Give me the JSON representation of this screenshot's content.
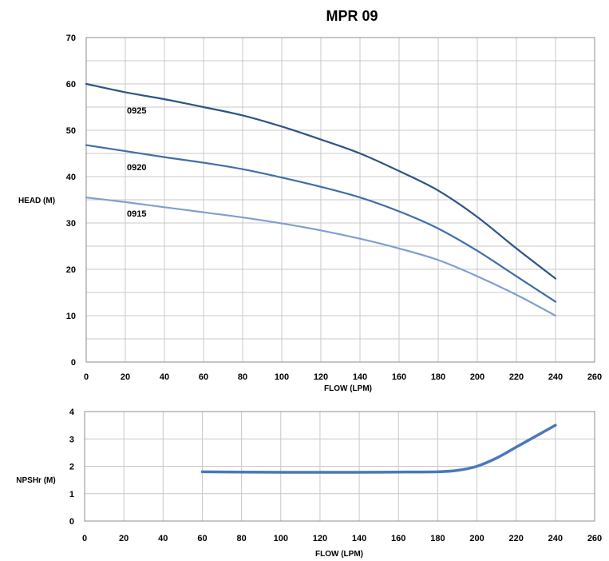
{
  "chart_data": [
    {
      "type": "line",
      "title": "MPR 09",
      "xlabel": "FLOW (LPM)",
      "ylabel": "HEAD (M)",
      "xlim": [
        0,
        260
      ],
      "ylim": [
        0,
        70
      ],
      "x_ticks": [
        "0",
        "20",
        "40",
        "60",
        "80",
        "100",
        "120",
        "140",
        "160",
        "180",
        "200",
        "220",
        "240",
        "260"
      ],
      "y_ticks": [
        "0",
        "10",
        "20",
        "30",
        "40",
        "50",
        "60",
        "70"
      ],
      "grid": true,
      "series": [
        {
          "name": "0925",
          "color": "#2e5383",
          "points": [
            [
              0,
              60
            ],
            [
              20,
              58.2
            ],
            [
              40,
              56.7
            ],
            [
              60,
              55
            ],
            [
              80,
              53.2
            ],
            [
              100,
              50.8
            ],
            [
              120,
              48
            ],
            [
              140,
              45
            ],
            [
              160,
              41.2
            ],
            [
              180,
              37
            ],
            [
              200,
              31.3
            ],
            [
              220,
              24.5
            ],
            [
              240,
              18
            ]
          ]
        },
        {
          "name": "0920",
          "color": "#3f6ea8",
          "points": [
            [
              0,
              46.8
            ],
            [
              20,
              45.5
            ],
            [
              40,
              44.2
            ],
            [
              60,
              43
            ],
            [
              80,
              41.6
            ],
            [
              100,
              39.8
            ],
            [
              120,
              37.8
            ],
            [
              140,
              35.5
            ],
            [
              160,
              32.5
            ],
            [
              180,
              28.8
            ],
            [
              200,
              24
            ],
            [
              220,
              18.5
            ],
            [
              240,
              13
            ]
          ]
        },
        {
          "name": "0915",
          "color": "#7f9fd0",
          "points": [
            [
              0,
              35.5
            ],
            [
              20,
              34.5
            ],
            [
              40,
              33.4
            ],
            [
              60,
              32.3
            ],
            [
              80,
              31.2
            ],
            [
              100,
              29.9
            ],
            [
              120,
              28.4
            ],
            [
              140,
              26.6
            ],
            [
              160,
              24.5
            ],
            [
              180,
              22
            ],
            [
              200,
              18.5
            ],
            [
              220,
              14.5
            ],
            [
              240,
              10
            ]
          ]
        }
      ]
    },
    {
      "type": "line",
      "title": "",
      "xlabel": "FLOW (LPM)",
      "ylabel": "NPSHr (M)",
      "xlim": [
        0,
        260
      ],
      "ylim": [
        0,
        4
      ],
      "x_ticks": [
        "0",
        "20",
        "40",
        "60",
        "80",
        "100",
        "120",
        "140",
        "160",
        "180",
        "200",
        "220",
        "240",
        "260"
      ],
      "y_ticks": [
        "0",
        "1",
        "2",
        "3",
        "4"
      ],
      "grid": true,
      "series": [
        {
          "name": "",
          "color": "#4a78b8",
          "points": [
            [
              60,
              1.8
            ],
            [
              80,
              1.79
            ],
            [
              100,
              1.78
            ],
            [
              120,
              1.78
            ],
            [
              140,
              1.78
            ],
            [
              160,
              1.79
            ],
            [
              180,
              1.8
            ],
            [
              190,
              1.85
            ],
            [
              200,
              2
            ],
            [
              210,
              2.3
            ],
            [
              220,
              2.7
            ],
            [
              230,
              3.1
            ],
            [
              240,
              3.5
            ]
          ]
        }
      ]
    }
  ]
}
